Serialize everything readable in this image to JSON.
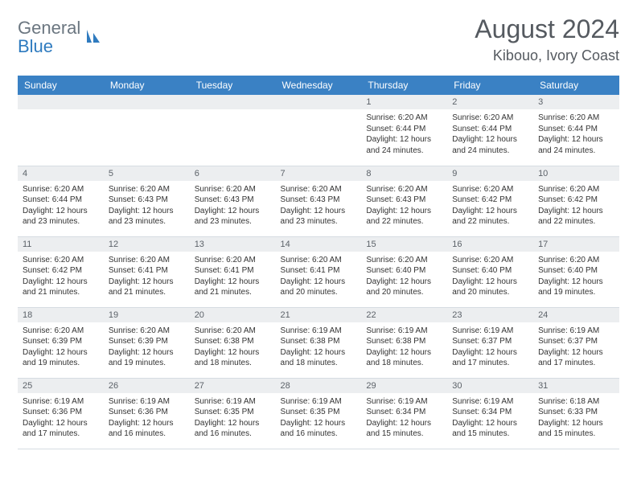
{
  "logo": {
    "general": "General",
    "blue": "Blue"
  },
  "title": "August 2024",
  "location": "Kibouo, Ivory Coast",
  "colors": {
    "header_bg": "#3a81c4",
    "header_fg": "#ffffff",
    "daynum_bg": "#eceef0",
    "border": "#d6dce2",
    "logo_gray": "#6b7680",
    "logo_blue": "#2f7bbf"
  },
  "weekdays": [
    "Sunday",
    "Monday",
    "Tuesday",
    "Wednesday",
    "Thursday",
    "Friday",
    "Saturday"
  ],
  "weeks": [
    [
      {
        "blank": true
      },
      {
        "blank": true
      },
      {
        "blank": true
      },
      {
        "blank": true
      },
      {
        "n": "1",
        "sr": "Sunrise: 6:20 AM",
        "ss": "Sunset: 6:44 PM",
        "dl": "Daylight: 12 hours and 24 minutes."
      },
      {
        "n": "2",
        "sr": "Sunrise: 6:20 AM",
        "ss": "Sunset: 6:44 PM",
        "dl": "Daylight: 12 hours and 24 minutes."
      },
      {
        "n": "3",
        "sr": "Sunrise: 6:20 AM",
        "ss": "Sunset: 6:44 PM",
        "dl": "Daylight: 12 hours and 24 minutes."
      }
    ],
    [
      {
        "n": "4",
        "sr": "Sunrise: 6:20 AM",
        "ss": "Sunset: 6:44 PM",
        "dl": "Daylight: 12 hours and 23 minutes."
      },
      {
        "n": "5",
        "sr": "Sunrise: 6:20 AM",
        "ss": "Sunset: 6:43 PM",
        "dl": "Daylight: 12 hours and 23 minutes."
      },
      {
        "n": "6",
        "sr": "Sunrise: 6:20 AM",
        "ss": "Sunset: 6:43 PM",
        "dl": "Daylight: 12 hours and 23 minutes."
      },
      {
        "n": "7",
        "sr": "Sunrise: 6:20 AM",
        "ss": "Sunset: 6:43 PM",
        "dl": "Daylight: 12 hours and 23 minutes."
      },
      {
        "n": "8",
        "sr": "Sunrise: 6:20 AM",
        "ss": "Sunset: 6:43 PM",
        "dl": "Daylight: 12 hours and 22 minutes."
      },
      {
        "n": "9",
        "sr": "Sunrise: 6:20 AM",
        "ss": "Sunset: 6:42 PM",
        "dl": "Daylight: 12 hours and 22 minutes."
      },
      {
        "n": "10",
        "sr": "Sunrise: 6:20 AM",
        "ss": "Sunset: 6:42 PM",
        "dl": "Daylight: 12 hours and 22 minutes."
      }
    ],
    [
      {
        "n": "11",
        "sr": "Sunrise: 6:20 AM",
        "ss": "Sunset: 6:42 PM",
        "dl": "Daylight: 12 hours and 21 minutes."
      },
      {
        "n": "12",
        "sr": "Sunrise: 6:20 AM",
        "ss": "Sunset: 6:41 PM",
        "dl": "Daylight: 12 hours and 21 minutes."
      },
      {
        "n": "13",
        "sr": "Sunrise: 6:20 AM",
        "ss": "Sunset: 6:41 PM",
        "dl": "Daylight: 12 hours and 21 minutes."
      },
      {
        "n": "14",
        "sr": "Sunrise: 6:20 AM",
        "ss": "Sunset: 6:41 PM",
        "dl": "Daylight: 12 hours and 20 minutes."
      },
      {
        "n": "15",
        "sr": "Sunrise: 6:20 AM",
        "ss": "Sunset: 6:40 PM",
        "dl": "Daylight: 12 hours and 20 minutes."
      },
      {
        "n": "16",
        "sr": "Sunrise: 6:20 AM",
        "ss": "Sunset: 6:40 PM",
        "dl": "Daylight: 12 hours and 20 minutes."
      },
      {
        "n": "17",
        "sr": "Sunrise: 6:20 AM",
        "ss": "Sunset: 6:40 PM",
        "dl": "Daylight: 12 hours and 19 minutes."
      }
    ],
    [
      {
        "n": "18",
        "sr": "Sunrise: 6:20 AM",
        "ss": "Sunset: 6:39 PM",
        "dl": "Daylight: 12 hours and 19 minutes."
      },
      {
        "n": "19",
        "sr": "Sunrise: 6:20 AM",
        "ss": "Sunset: 6:39 PM",
        "dl": "Daylight: 12 hours and 19 minutes."
      },
      {
        "n": "20",
        "sr": "Sunrise: 6:20 AM",
        "ss": "Sunset: 6:38 PM",
        "dl": "Daylight: 12 hours and 18 minutes."
      },
      {
        "n": "21",
        "sr": "Sunrise: 6:19 AM",
        "ss": "Sunset: 6:38 PM",
        "dl": "Daylight: 12 hours and 18 minutes."
      },
      {
        "n": "22",
        "sr": "Sunrise: 6:19 AM",
        "ss": "Sunset: 6:38 PM",
        "dl": "Daylight: 12 hours and 18 minutes."
      },
      {
        "n": "23",
        "sr": "Sunrise: 6:19 AM",
        "ss": "Sunset: 6:37 PM",
        "dl": "Daylight: 12 hours and 17 minutes."
      },
      {
        "n": "24",
        "sr": "Sunrise: 6:19 AM",
        "ss": "Sunset: 6:37 PM",
        "dl": "Daylight: 12 hours and 17 minutes."
      }
    ],
    [
      {
        "n": "25",
        "sr": "Sunrise: 6:19 AM",
        "ss": "Sunset: 6:36 PM",
        "dl": "Daylight: 12 hours and 17 minutes."
      },
      {
        "n": "26",
        "sr": "Sunrise: 6:19 AM",
        "ss": "Sunset: 6:36 PM",
        "dl": "Daylight: 12 hours and 16 minutes."
      },
      {
        "n": "27",
        "sr": "Sunrise: 6:19 AM",
        "ss": "Sunset: 6:35 PM",
        "dl": "Daylight: 12 hours and 16 minutes."
      },
      {
        "n": "28",
        "sr": "Sunrise: 6:19 AM",
        "ss": "Sunset: 6:35 PM",
        "dl": "Daylight: 12 hours and 16 minutes."
      },
      {
        "n": "29",
        "sr": "Sunrise: 6:19 AM",
        "ss": "Sunset: 6:34 PM",
        "dl": "Daylight: 12 hours and 15 minutes."
      },
      {
        "n": "30",
        "sr": "Sunrise: 6:19 AM",
        "ss": "Sunset: 6:34 PM",
        "dl": "Daylight: 12 hours and 15 minutes."
      },
      {
        "n": "31",
        "sr": "Sunrise: 6:18 AM",
        "ss": "Sunset: 6:33 PM",
        "dl": "Daylight: 12 hours and 15 minutes."
      }
    ]
  ]
}
